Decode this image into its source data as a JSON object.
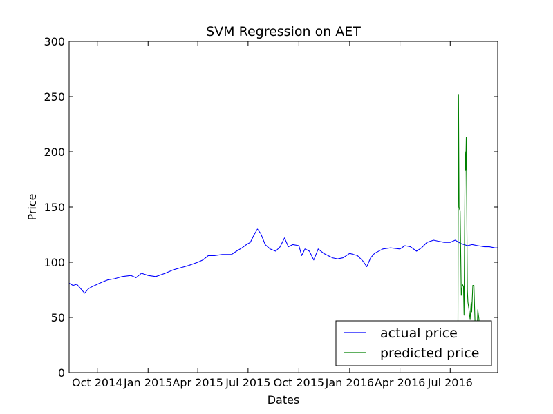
{
  "chart_data": {
    "type": "line",
    "title": "SVM Regression on AET",
    "xlabel": "Dates",
    "ylabel": "Price",
    "ylim": [
      0,
      300
    ],
    "xlim": [
      "2014-08-11",
      "2016-09-25"
    ],
    "yticks": [
      0,
      50,
      100,
      150,
      200,
      250,
      300
    ],
    "xticks": [
      {
        "label": "Oct 2014",
        "date": "2014-10-01"
      },
      {
        "label": "Jan 2015",
        "date": "2015-01-01"
      },
      {
        "label": "Apr 2015",
        "date": "2015-04-01"
      },
      {
        "label": "Jul 2015",
        "date": "2015-07-01"
      },
      {
        "label": "Oct 2015",
        "date": "2015-10-01"
      },
      {
        "label": "Jan 2016",
        "date": "2016-01-01"
      },
      {
        "label": "Apr 2016",
        "date": "2016-04-01"
      },
      {
        "label": "Jul 2016",
        "date": "2016-07-01"
      }
    ],
    "grid": false,
    "legend": "lower-right",
    "series": [
      {
        "name": "actual price",
        "color": "#0000ff",
        "points": [
          [
            "2014-08-11",
            81
          ],
          [
            "2014-08-18",
            79
          ],
          [
            "2014-08-25",
            80
          ],
          [
            "2014-09-01",
            76
          ],
          [
            "2014-09-08",
            72
          ],
          [
            "2014-09-15",
            76
          ],
          [
            "2014-09-22",
            78
          ],
          [
            "2014-10-01",
            80
          ],
          [
            "2014-10-10",
            82
          ],
          [
            "2014-10-20",
            84
          ],
          [
            "2014-11-01",
            85
          ],
          [
            "2014-11-15",
            87
          ],
          [
            "2014-12-01",
            88
          ],
          [
            "2014-12-10",
            86
          ],
          [
            "2014-12-20",
            90
          ],
          [
            "2015-01-01",
            88
          ],
          [
            "2015-01-15",
            87
          ],
          [
            "2015-02-01",
            90
          ],
          [
            "2015-02-15",
            93
          ],
          [
            "2015-03-01",
            95
          ],
          [
            "2015-03-15",
            97
          ],
          [
            "2015-04-01",
            100
          ],
          [
            "2015-04-10",
            102
          ],
          [
            "2015-04-20",
            106
          ],
          [
            "2015-05-01",
            106
          ],
          [
            "2015-05-15",
            107
          ],
          [
            "2015-06-01",
            107
          ],
          [
            "2015-06-10",
            110
          ],
          [
            "2015-06-20",
            113
          ],
          [
            "2015-06-28",
            116
          ],
          [
            "2015-07-05",
            118
          ],
          [
            "2015-07-12",
            125
          ],
          [
            "2015-07-18",
            130
          ],
          [
            "2015-07-24",
            126
          ],
          [
            "2015-08-01",
            116
          ],
          [
            "2015-08-10",
            112
          ],
          [
            "2015-08-20",
            110
          ],
          [
            "2015-08-28",
            114
          ],
          [
            "2015-09-05",
            122
          ],
          [
            "2015-09-12",
            114
          ],
          [
            "2015-09-20",
            116
          ],
          [
            "2015-10-01",
            115
          ],
          [
            "2015-10-06",
            106
          ],
          [
            "2015-10-12",
            112
          ],
          [
            "2015-10-20",
            110
          ],
          [
            "2015-10-28",
            102
          ],
          [
            "2015-11-05",
            112
          ],
          [
            "2015-11-15",
            108
          ],
          [
            "2015-12-01",
            104
          ],
          [
            "2015-12-10",
            103
          ],
          [
            "2015-12-20",
            104
          ],
          [
            "2016-01-01",
            108
          ],
          [
            "2016-01-15",
            106
          ],
          [
            "2016-01-25",
            101
          ],
          [
            "2016-02-01",
            96
          ],
          [
            "2016-02-08",
            104
          ],
          [
            "2016-02-15",
            108
          ],
          [
            "2016-03-01",
            112
          ],
          [
            "2016-03-15",
            113
          ],
          [
            "2016-04-01",
            112
          ],
          [
            "2016-04-10",
            115
          ],
          [
            "2016-04-20",
            114
          ],
          [
            "2016-05-01",
            110
          ],
          [
            "2016-05-10",
            113
          ],
          [
            "2016-05-20",
            118
          ],
          [
            "2016-06-01",
            120
          ],
          [
            "2016-06-10",
            119
          ],
          [
            "2016-06-20",
            118
          ],
          [
            "2016-07-01",
            118
          ],
          [
            "2016-07-10",
            120
          ],
          [
            "2016-07-20",
            117
          ],
          [
            "2016-08-01",
            115
          ],
          [
            "2016-08-10",
            116
          ],
          [
            "2016-08-20",
            115
          ],
          [
            "2016-09-01",
            114
          ],
          [
            "2016-09-10",
            114
          ],
          [
            "2016-09-20",
            113
          ],
          [
            "2016-09-25",
            113
          ]
        ]
      },
      {
        "name": "predicted price",
        "color": "#008000",
        "points": [
          [
            "2016-07-15",
            45
          ],
          [
            "2016-07-16",
            252
          ],
          [
            "2016-07-17",
            150
          ],
          [
            "2016-07-19",
            146
          ],
          [
            "2016-07-21",
            70
          ],
          [
            "2016-07-23",
            80
          ],
          [
            "2016-07-25",
            78
          ],
          [
            "2016-07-26",
            52
          ],
          [
            "2016-07-28",
            200
          ],
          [
            "2016-07-29",
            183
          ],
          [
            "2016-07-30",
            213
          ],
          [
            "2016-08-01",
            75
          ],
          [
            "2016-08-02",
            64
          ],
          [
            "2016-08-04",
            57
          ],
          [
            "2016-08-06",
            48
          ],
          [
            "2016-08-08",
            64
          ],
          [
            "2016-08-09",
            55
          ],
          [
            "2016-08-11",
            79
          ],
          [
            "2016-08-13",
            79
          ],
          [
            "2016-08-15",
            45
          ],
          [
            "2016-08-17",
            42
          ],
          [
            "2016-08-18",
            20
          ],
          [
            "2016-08-20",
            57
          ],
          [
            "2016-08-22",
            49
          ],
          [
            "2016-08-23",
            40
          ],
          [
            "2016-08-24",
            28
          ],
          [
            "2016-08-26",
            38
          ],
          [
            "2016-08-28",
            20
          ]
        ]
      }
    ]
  }
}
